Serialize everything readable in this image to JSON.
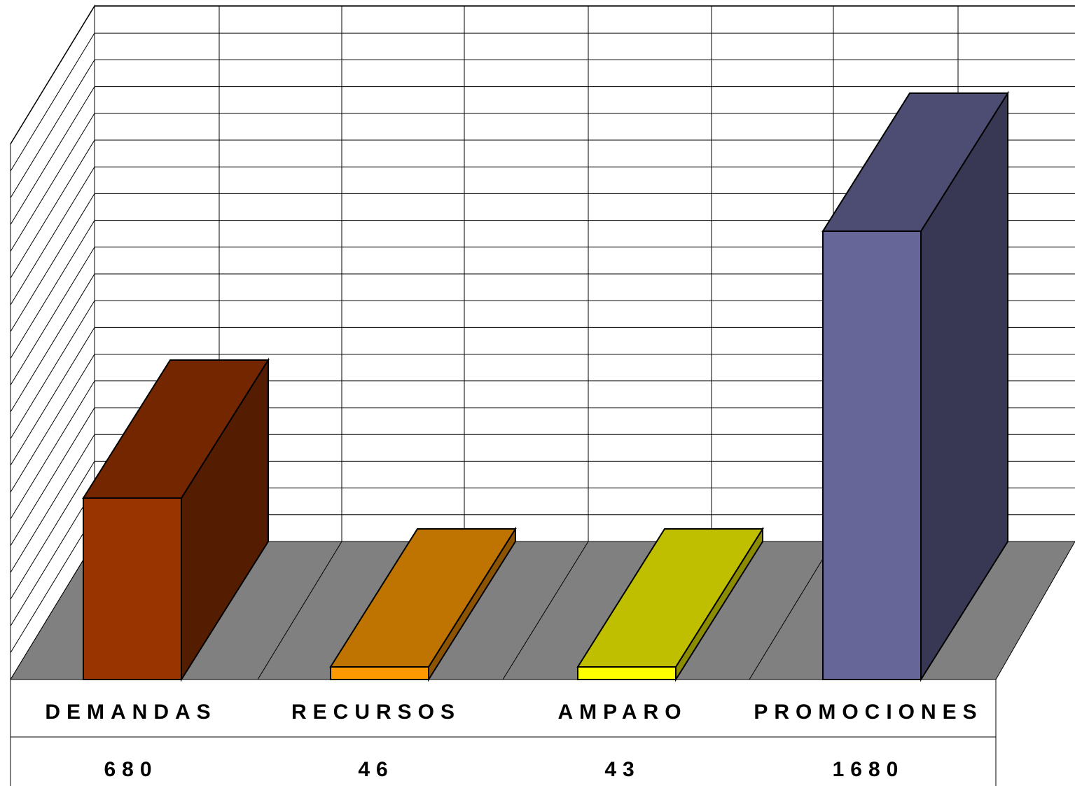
{
  "chart_data": {
    "type": "bar",
    "title": "",
    "xlabel": "",
    "ylabel": "",
    "categories": [
      "DEMANDAS",
      "RECURSOS",
      "AMPARO",
      "PROMOCIONES"
    ],
    "values": [
      680,
      46,
      43,
      1680
    ],
    "value_labels": [
      "680",
      "46",
      "43",
      "1680"
    ],
    "ylim": [
      0,
      2200
    ],
    "grid": true,
    "legend": "none",
    "three_d": true,
    "data_table_below": true,
    "colors": {
      "bars": [
        "#993300",
        "#FF9900",
        "#FFFF00",
        "#666699"
      ],
      "floor": "#808080",
      "gridline": "#000000"
    }
  }
}
